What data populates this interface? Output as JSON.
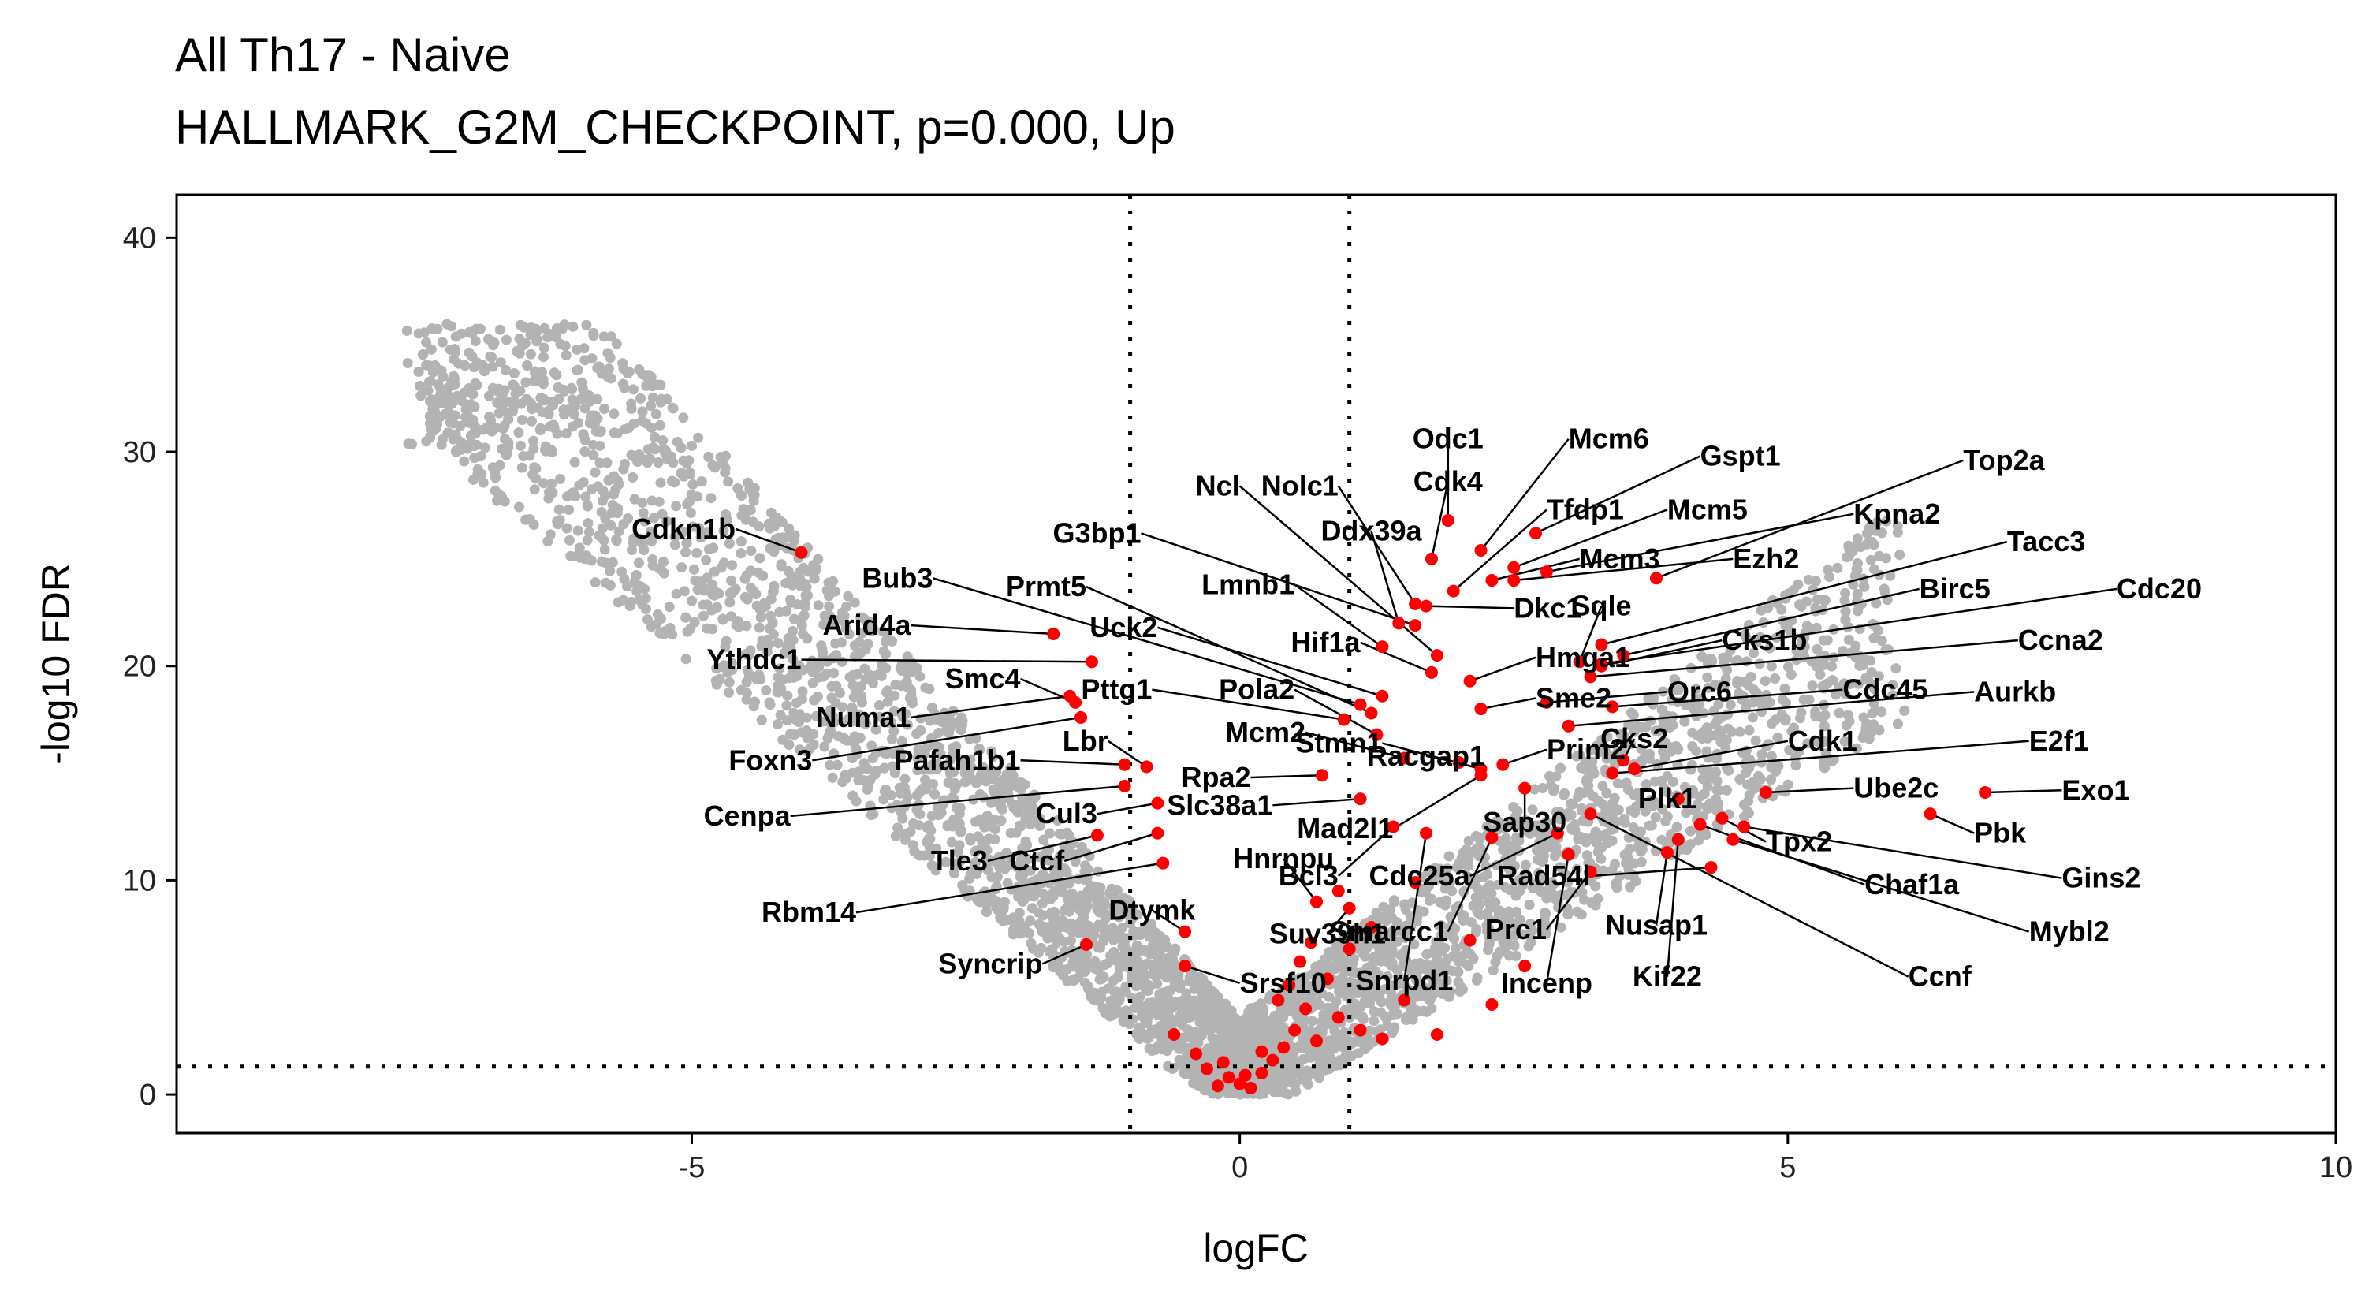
{
  "chart_data": {
    "type": "scatter",
    "title": "All Th17 - Naive",
    "subtitle": "HALLMARK_G2M_CHECKPOINT, p=0.000, Up",
    "xlabel": "logFC",
    "ylabel": "-log10 FDR",
    "xlim": [
      -9.7,
      10
    ],
    "ylim": [
      -1.8,
      42
    ],
    "xticks": [
      -5,
      0,
      5,
      10
    ],
    "yticks": [
      0,
      10,
      20,
      30,
      40
    ],
    "grid": false,
    "legend": "none",
    "colors": {
      "background_genes": "#b3b3b3",
      "highlight_genes": "#ff0000",
      "threshold_lines": "#000000"
    },
    "thresholds": {
      "logfc": [
        -1,
        1
      ],
      "neg_log10_fdr": 1.3
    },
    "highlighted_genes": [
      {
        "label": "Cdkn1b",
        "x": -4.0,
        "y": 25.3,
        "lx": -4.6,
        "ly": 26.4
      },
      {
        "label": "Bub3",
        "x": 1.1,
        "y": 18.2,
        "lx": -2.8,
        "ly": 24.1
      },
      {
        "label": "Prmt5",
        "x": 1.2,
        "y": 17.8,
        "lx": -1.4,
        "ly": 23.7
      },
      {
        "label": "Arid4a",
        "x": -1.7,
        "y": 21.5,
        "lx": -3.0,
        "ly": 21.9
      },
      {
        "label": "Ythdc1",
        "x": -1.35,
        "y": 20.2,
        "lx": -4.0,
        "ly": 20.3
      },
      {
        "label": "Smc4",
        "x": -1.5,
        "y": 18.3,
        "lx": -2.0,
        "ly": 19.4
      },
      {
        "label": "Numa1",
        "x": -1.55,
        "y": 18.6,
        "lx": -3.0,
        "ly": 17.6
      },
      {
        "label": "Foxn3",
        "x": -1.45,
        "y": 17.6,
        "lx": -3.9,
        "ly": 15.6
      },
      {
        "label": "Pafah1b1",
        "x": -1.05,
        "y": 15.4,
        "lx": -2.0,
        "ly": 15.6
      },
      {
        "label": "Lbr",
        "x": -0.85,
        "y": 15.3,
        "lx": -1.2,
        "ly": 16.5
      },
      {
        "label": "Cenpa",
        "x": -1.05,
        "y": 14.4,
        "lx": -4.1,
        "ly": 13.0
      },
      {
        "label": "Cul3",
        "x": -0.75,
        "y": 13.6,
        "lx": -1.3,
        "ly": 13.1
      },
      {
        "label": "Tle3",
        "x": -1.3,
        "y": 12.1,
        "lx": -2.3,
        "ly": 10.9
      },
      {
        "label": "Ctcf",
        "x": -0.75,
        "y": 12.2,
        "lx": -1.6,
        "ly": 10.9
      },
      {
        "label": "Rbm14",
        "x": -0.7,
        "y": 10.8,
        "lx": -3.5,
        "ly": 8.5
      },
      {
        "label": "Syncrip",
        "x": -1.4,
        "y": 7.0,
        "lx": -1.8,
        "ly": 6.1
      },
      {
        "label": "Dtymk",
        "x": -0.5,
        "y": 7.6,
        "lx": -0.8,
        "ly": 8.6
      },
      {
        "label": "Srsf10",
        "x": -0.5,
        "y": 6.0,
        "lx": 0.0,
        "ly": 5.2
      },
      {
        "label": "Suv39h1",
        "x": 1.0,
        "y": 8.7,
        "lx": 0.8,
        "ly": 7.5
      },
      {
        "label": "Hnrnpu",
        "x": 0.7,
        "y": 9.0,
        "lx": 0.4,
        "ly": 11.0
      },
      {
        "label": "Slc38a1",
        "x": 1.1,
        "y": 13.8,
        "lx": 0.3,
        "ly": 13.5
      },
      {
        "label": "Rpa2",
        "x": 0.75,
        "y": 14.9,
        "lx": 0.1,
        "ly": 14.8
      },
      {
        "label": "Uck2",
        "x": 1.3,
        "y": 18.6,
        "lx": -0.75,
        "ly": 21.8
      },
      {
        "label": "Pttg1",
        "x": 0.95,
        "y": 17.5,
        "lx": -0.8,
        "ly": 18.9
      },
      {
        "label": "G3bp1",
        "x": 1.6,
        "y": 21.9,
        "lx": -0.9,
        "ly": 26.2
      },
      {
        "label": "Ncl",
        "x": 1.8,
        "y": 20.5,
        "lx": 0.0,
        "ly": 28.4
      },
      {
        "label": "Nolc1",
        "x": 1.6,
        "y": 22.9,
        "lx": 0.9,
        "ly": 28.4
      },
      {
        "label": "Lmnb1",
        "x": 1.3,
        "y": 20.9,
        "lx": 0.5,
        "ly": 23.8
      },
      {
        "label": "Ddx39a",
        "x": 1.45,
        "y": 22.0,
        "lx": 1.2,
        "ly": 26.3
      },
      {
        "label": "Hif1a",
        "x": 1.75,
        "y": 19.7,
        "lx": 1.1,
        "ly": 21.1
      },
      {
        "label": "Pola2",
        "x": 1.25,
        "y": 16.8,
        "lx": 0.5,
        "ly": 18.9
      },
      {
        "label": "Mcm2",
        "x": 1.5,
        "y": 15.7,
        "lx": 0.6,
        "ly": 16.9
      },
      {
        "label": "Stmn1",
        "x": 2.2,
        "y": 15.2,
        "lx": 1.3,
        "ly": 16.4
      },
      {
        "label": "Mad2l1",
        "x": 2.2,
        "y": 14.9,
        "lx": 1.4,
        "ly": 12.4
      },
      {
        "label": "Bcl3",
        "x": 1.4,
        "y": 12.5,
        "lx": 0.9,
        "ly": 10.2
      },
      {
        "label": "Snrpd1",
        "x": 1.7,
        "y": 12.2,
        "lx": 1.5,
        "ly": 5.3
      },
      {
        "label": "Smarcc1",
        "x": 2.3,
        "y": 12.0,
        "lx": 1.9,
        "ly": 7.6
      },
      {
        "label": "Cdc25a",
        "x": 2.9,
        "y": 12.2,
        "lx": 2.1,
        "ly": 10.2
      },
      {
        "label": "Prc1",
        "x": 3.2,
        "y": 10.4,
        "lx": 2.8,
        "ly": 7.7
      },
      {
        "label": "Incenp",
        "x": 3.0,
        "y": 11.2,
        "lx": 2.8,
        "ly": 5.2
      },
      {
        "label": "Rad54l",
        "x": 4.3,
        "y": 10.6,
        "lx": 3.2,
        "ly": 10.2
      },
      {
        "label": "Nusap1",
        "x": 3.9,
        "y": 11.3,
        "lx": 3.8,
        "ly": 7.9
      },
      {
        "label": "Kif22",
        "x": 4.0,
        "y": 11.9,
        "lx": 3.9,
        "ly": 5.5
      },
      {
        "label": "Sap30",
        "x": 2.6,
        "y": 14.3,
        "lx": 2.6,
        "ly": 12.7
      },
      {
        "label": "Racgap1",
        "x": 2.0,
        "y": 15.5,
        "lx": 1.7,
        "ly": 15.8
      },
      {
        "label": "Prim2",
        "x": 2.4,
        "y": 15.4,
        "lx": 2.8,
        "ly": 16.1
      },
      {
        "label": "Cks2",
        "x": 3.5,
        "y": 15.6,
        "lx": 3.6,
        "ly": 16.6
      },
      {
        "label": "Cdk1",
        "x": 3.6,
        "y": 15.2,
        "lx": 5.0,
        "ly": 16.5
      },
      {
        "label": "Plk1",
        "x": 4.0,
        "y": 13.8,
        "lx": 3.9,
        "ly": 13.8
      },
      {
        "label": "Tpx2",
        "x": 4.4,
        "y": 12.9,
        "lx": 4.8,
        "ly": 11.8
      },
      {
        "label": "Chaf1a",
        "x": 4.2,
        "y": 12.6,
        "lx": 5.7,
        "ly": 9.8
      },
      {
        "label": "Ccnf",
        "x": 3.2,
        "y": 13.1,
        "lx": 6.1,
        "ly": 5.5
      },
      {
        "label": "Mybl2",
        "x": 4.5,
        "y": 11.9,
        "lx": 7.2,
        "ly": 7.6
      },
      {
        "label": "Ube2c",
        "x": 4.8,
        "y": 14.1,
        "lx": 5.6,
        "ly": 14.3
      },
      {
        "label": "Pbk",
        "x": 6.3,
        "y": 13.1,
        "lx": 6.7,
        "ly": 12.2
      },
      {
        "label": "Gins2",
        "x": 4.6,
        "y": 12.5,
        "lx": 7.5,
        "ly": 10.1
      },
      {
        "label": "Exo1",
        "x": 6.8,
        "y": 14.1,
        "lx": 7.5,
        "ly": 14.2
      },
      {
        "label": "E2f1",
        "x": 3.4,
        "y": 15.0,
        "lx": 7.2,
        "ly": 16.5
      },
      {
        "label": "Aurkb",
        "x": 3.0,
        "y": 17.2,
        "lx": 6.7,
        "ly": 18.8
      },
      {
        "label": "Cdc45",
        "x": 3.4,
        "y": 18.1,
        "lx": 5.5,
        "ly": 18.9
      },
      {
        "label": "Orc6",
        "x": 2.8,
        "y": 18.3,
        "lx": 3.9,
        "ly": 18.8
      },
      {
        "label": "Ccna2",
        "x": 3.2,
        "y": 19.5,
        "lx": 7.1,
        "ly": 21.2
      },
      {
        "label": "Cks1b",
        "x": 3.3,
        "y": 20.0,
        "lx": 4.4,
        "ly": 21.2
      },
      {
        "label": "Sme2",
        "x": 2.2,
        "y": 18.0,
        "lx": 2.7,
        "ly": 18.5
      },
      {
        "label": "Hmga1",
        "x": 2.1,
        "y": 19.3,
        "lx": 2.7,
        "ly": 20.4
      },
      {
        "label": "Sqle",
        "x": 3.1,
        "y": 20.2,
        "lx": 3.3,
        "ly": 22.8
      },
      {
        "label": "Dkc1",
        "x": 1.7,
        "y": 22.8,
        "lx": 2.5,
        "ly": 22.7
      },
      {
        "label": "Birc5",
        "x": 3.5,
        "y": 20.5,
        "lx": 6.2,
        "ly": 23.6
      },
      {
        "label": "Cdc20",
        "x": 3.3,
        "y": 20.1,
        "lx": 8.0,
        "ly": 23.6
      },
      {
        "label": "Tacc3",
        "x": 3.3,
        "y": 21.0,
        "lx": 7.0,
        "ly": 25.8
      },
      {
        "label": "Ezh2",
        "x": 2.5,
        "y": 24.0,
        "lx": 4.5,
        "ly": 25.0
      },
      {
        "label": "Kpna2",
        "x": 2.8,
        "y": 24.4,
        "lx": 5.6,
        "ly": 27.1
      },
      {
        "label": "Top2a",
        "x": 3.8,
        "y": 24.1,
        "lx": 6.6,
        "ly": 29.6
      },
      {
        "label": "Mcm5",
        "x": 2.5,
        "y": 24.6,
        "lx": 3.9,
        "ly": 27.3
      },
      {
        "label": "Mcm3",
        "x": 2.3,
        "y": 24.0,
        "lx": 3.1,
        "ly": 25.0
      },
      {
        "label": "Tfdp1",
        "x": 1.95,
        "y": 23.5,
        "lx": 2.8,
        "ly": 27.3
      },
      {
        "label": "Gspt1",
        "x": 2.7,
        "y": 26.2,
        "lx": 4.2,
        "ly": 29.8
      },
      {
        "label": "Mcm6",
        "x": 2.2,
        "y": 25.4,
        "lx": 3.0,
        "ly": 30.6
      },
      {
        "label": "Cdk4",
        "x": 1.75,
        "y": 25.0,
        "lx": 1.9,
        "ly": 28.6
      },
      {
        "label": "Odc1",
        "x": 1.9,
        "y": 26.8,
        "lx": 1.9,
        "ly": 30.6
      }
    ]
  }
}
